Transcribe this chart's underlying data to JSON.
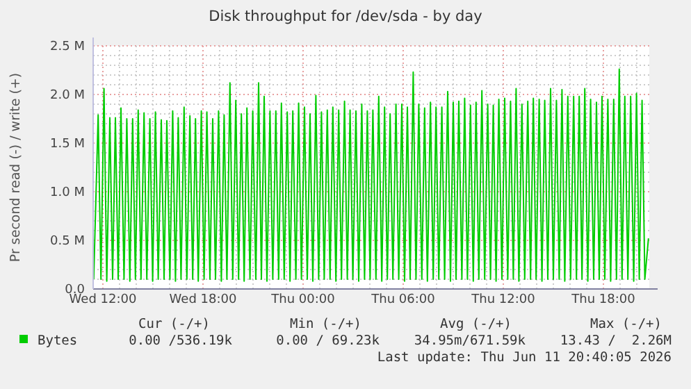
{
  "chart_data": {
    "type": "line",
    "title": "Disk throughput for /dev/sda - by day",
    "ylabel": "Pr second read (-) / write (+)",
    "xlim": [
      "2026-06-10T11:25",
      "2026-06-11T20:45"
    ],
    "xticks": [
      {
        "value": "2026-06-10T12:00",
        "label": "Wed 12:00"
      },
      {
        "value": "2026-06-10T18:00",
        "label": "Wed 18:00"
      },
      {
        "value": "2026-06-11T00:00",
        "label": "Thu 00:00"
      },
      {
        "value": "2026-06-11T06:00",
        "label": "Thu 06:00"
      },
      {
        "value": "2026-06-11T12:00",
        "label": "Thu 12:00"
      },
      {
        "value": "2026-06-11T18:00",
        "label": "Thu 18:00"
      }
    ],
    "ylim": [
      0,
      2.5
    ],
    "yticks": [
      {
        "value": 0,
        "label": "0.0"
      },
      {
        "value": 0.1,
        "label": null
      },
      {
        "value": 0.2,
        "label": null
      },
      {
        "value": 0.3,
        "label": null
      },
      {
        "value": 0.4,
        "label": null
      },
      {
        "value": 0.5,
        "label": "0.5 M"
      },
      {
        "value": 0.6,
        "label": null
      },
      {
        "value": 0.7,
        "label": null
      },
      {
        "value": 0.8,
        "label": null
      },
      {
        "value": 0.9,
        "label": null
      },
      {
        "value": 1.0,
        "label": "1.0 M"
      },
      {
        "value": 1.1,
        "label": null
      },
      {
        "value": 1.2,
        "label": null
      },
      {
        "value": 1.3,
        "label": null
      },
      {
        "value": 1.4,
        "label": null
      },
      {
        "value": 1.5,
        "label": "1.5 M"
      },
      {
        "value": 1.6,
        "label": null
      },
      {
        "value": 1.7,
        "label": null
      },
      {
        "value": 1.8,
        "label": null
      },
      {
        "value": 1.9,
        "label": null
      },
      {
        "value": 2.0,
        "label": "2.0 M"
      },
      {
        "value": 2.1,
        "label": null
      },
      {
        "value": 2.2,
        "label": null
      },
      {
        "value": 2.3,
        "label": null
      },
      {
        "value": 2.4,
        "label": null
      },
      {
        "value": 2.5,
        "label": "2.5 M"
      }
    ],
    "grid": true,
    "legend": "bottom left",
    "annotations": [
      "Cur (-/+)",
      "Min (-/+)",
      "Avg (-/+)",
      "Max (-/+)",
      "0.00 /536.19k",
      "0.00 / 69.23k",
      "34.95m/671.59k",
      "13.43 /  2.26M",
      "Last update: Thu Jun 11 20:40:05 2026"
    ],
    "series": [
      {
        "name": "Bytes",
        "color": "#00cc00",
        "x": [
          "2026-06-10T11:27",
          "2026-06-10T11:43",
          "2026-06-10T11:53",
          "2026-06-10T12:04",
          "2026-06-10T12:14",
          "2026-06-10T12:25",
          "2026-06-10T12:35",
          "2026-06-10T12:45",
          "2026-06-10T12:55",
          "2026-06-10T13:05",
          "2026-06-10T13:16",
          "2026-06-10T13:26",
          "2026-06-10T13:37",
          "2026-06-10T13:47",
          "2026-06-10T13:57",
          "2026-06-10T14:07",
          "2026-06-10T14:17",
          "2026-06-10T14:28",
          "2026-06-10T14:38",
          "2026-06-10T14:49",
          "2026-06-10T14:59",
          "2026-06-10T15:09",
          "2026-06-10T15:19",
          "2026-06-10T15:30",
          "2026-06-10T15:40",
          "2026-06-10T15:50",
          "2026-06-10T16:01",
          "2026-06-10T16:11",
          "2026-06-10T16:21",
          "2026-06-10T16:31",
          "2026-06-10T16:41",
          "2026-06-10T16:52",
          "2026-06-10T17:02",
          "2026-06-10T17:13",
          "2026-06-10T17:23",
          "2026-06-10T17:33",
          "2026-06-10T17:43",
          "2026-06-10T17:54",
          "2026-06-10T18:04",
          "2026-06-10T18:14",
          "2026-06-10T18:25",
          "2026-06-10T18:35",
          "2026-06-10T18:45",
          "2026-06-10T18:56",
          "2026-06-10T19:06",
          "2026-06-10T19:16",
          "2026-06-10T19:26",
          "2026-06-10T19:37",
          "2026-06-10T19:47",
          "2026-06-10T19:58",
          "2026-06-10T20:08",
          "2026-06-10T20:18",
          "2026-06-10T20:28",
          "2026-06-10T20:38",
          "2026-06-10T20:49",
          "2026-06-10T20:59",
          "2026-06-10T21:10",
          "2026-06-10T21:20",
          "2026-06-10T21:30",
          "2026-06-10T21:40",
          "2026-06-10T21:50",
          "2026-06-10T22:01",
          "2026-06-10T22:11",
          "2026-06-10T22:22",
          "2026-06-10T22:32",
          "2026-06-10T22:42",
          "2026-06-10T22:52",
          "2026-06-10T23:03",
          "2026-06-10T23:13",
          "2026-06-10T23:23",
          "2026-06-10T23:34",
          "2026-06-10T23:44",
          "2026-06-10T23:54",
          "2026-06-11T00:05",
          "2026-06-11T00:15",
          "2026-06-11T00:25",
          "2026-06-11T00:35",
          "2026-06-11T00:46",
          "2026-06-11T00:56",
          "2026-06-11T01:06",
          "2026-06-11T01:16",
          "2026-06-11T01:27",
          "2026-06-11T01:37",
          "2026-06-11T01:47",
          "2026-06-11T01:58",
          "2026-06-11T02:08",
          "2026-06-11T02:18",
          "2026-06-11T02:29",
          "2026-06-11T02:39",
          "2026-06-11T02:49",
          "2026-06-11T02:59",
          "2026-06-11T03:10",
          "2026-06-11T03:20",
          "2026-06-11T03:31",
          "2026-06-11T03:41",
          "2026-06-11T03:51",
          "2026-06-11T04:01",
          "2026-06-11T04:11",
          "2026-06-11T04:22",
          "2026-06-11T04:32",
          "2026-06-11T04:43",
          "2026-06-11T04:53",
          "2026-06-11T05:03",
          "2026-06-11T05:13",
          "2026-06-11T05:23",
          "2026-06-11T05:34",
          "2026-06-11T05:44",
          "2026-06-11T05:55",
          "2026-06-11T06:05",
          "2026-06-11T06:15",
          "2026-06-11T06:25",
          "2026-06-11T06:36",
          "2026-06-11T06:46",
          "2026-06-11T06:56",
          "2026-06-11T07:07",
          "2026-06-11T07:17",
          "2026-06-11T07:27",
          "2026-06-11T07:38",
          "2026-06-11T07:48",
          "2026-06-11T07:58",
          "2026-06-11T08:08",
          "2026-06-11T08:19",
          "2026-06-11T08:29",
          "2026-06-11T08:40",
          "2026-06-11T08:50",
          "2026-06-11T09:00",
          "2026-06-11T09:10",
          "2026-06-11T09:20",
          "2026-06-11T09:31",
          "2026-06-11T09:41",
          "2026-06-11T09:51",
          "2026-06-11T10:02",
          "2026-06-11T10:12",
          "2026-06-11T10:22",
          "2026-06-11T10:32",
          "2026-06-11T10:43",
          "2026-06-11T10:53",
          "2026-06-11T11:04",
          "2026-06-11T11:14",
          "2026-06-11T11:24",
          "2026-06-11T11:34",
          "2026-06-11T11:44",
          "2026-06-11T11:55",
          "2026-06-11T12:05",
          "2026-06-11T12:16",
          "2026-06-11T12:26",
          "2026-06-11T12:36",
          "2026-06-11T12:46",
          "2026-06-11T12:56",
          "2026-06-11T13:07",
          "2026-06-11T13:17",
          "2026-06-11T13:28",
          "2026-06-11T13:38",
          "2026-06-11T13:48",
          "2026-06-11T13:58",
          "2026-06-11T14:09",
          "2026-06-11T14:19",
          "2026-06-11T14:29",
          "2026-06-11T14:40",
          "2026-06-11T14:50",
          "2026-06-11T15:00",
          "2026-06-11T15:11",
          "2026-06-11T15:21",
          "2026-06-11T15:31",
          "2026-06-11T15:41",
          "2026-06-11T15:52",
          "2026-06-11T16:02",
          "2026-06-11T16:13",
          "2026-06-11T16:23",
          "2026-06-11T16:33",
          "2026-06-11T16:43",
          "2026-06-11T16:53",
          "2026-06-11T17:04",
          "2026-06-11T17:14",
          "2026-06-11T17:25",
          "2026-06-11T17:35",
          "2026-06-11T17:45",
          "2026-06-11T17:55",
          "2026-06-11T18:05",
          "2026-06-11T18:16",
          "2026-06-11T18:26",
          "2026-06-11T18:37",
          "2026-06-11T18:47",
          "2026-06-11T18:57",
          "2026-06-11T19:07",
          "2026-06-11T19:17",
          "2026-06-11T19:28",
          "2026-06-11T19:38",
          "2026-06-11T19:49",
          "2026-06-11T19:59",
          "2026-06-11T20:09",
          "2026-06-11T20:19",
          "2026-06-11T20:29",
          "2026-06-11T20:42"
        ],
        "values": [
          0.1,
          1.79,
          0.1,
          2.06,
          0.08,
          1.76,
          0.1,
          1.76,
          0.1,
          1.86,
          0.1,
          1.75,
          0.08,
          1.75,
          0.1,
          1.84,
          0.1,
          1.81,
          0.1,
          1.75,
          0.08,
          1.82,
          0.1,
          1.74,
          0.1,
          1.73,
          0.1,
          1.83,
          0.08,
          1.76,
          0.1,
          1.87,
          0.1,
          1.78,
          0.1,
          1.75,
          0.08,
          1.83,
          0.1,
          1.82,
          0.1,
          1.75,
          0.1,
          1.83,
          0.08,
          1.79,
          0.1,
          2.12,
          0.1,
          1.94,
          0.1,
          1.8,
          0.08,
          1.86,
          0.1,
          1.83,
          0.1,
          2.12,
          0.1,
          1.98,
          0.08,
          1.83,
          0.1,
          1.83,
          0.1,
          1.91,
          0.1,
          1.82,
          0.08,
          1.83,
          0.1,
          1.91,
          0.1,
          1.87,
          0.1,
          1.8,
          0.08,
          1.99,
          0.1,
          1.82,
          0.1,
          1.84,
          0.1,
          1.87,
          0.08,
          1.84,
          0.1,
          1.93,
          0.1,
          1.84,
          0.1,
          1.83,
          0.08,
          1.9,
          0.1,
          1.83,
          0.1,
          1.84,
          0.1,
          1.98,
          0.08,
          1.87,
          0.1,
          1.8,
          0.1,
          1.9,
          0.1,
          1.9,
          0.08,
          1.87,
          0.1,
          2.23,
          0.1,
          1.9,
          0.1,
          1.86,
          0.08,
          1.92,
          0.1,
          1.87,
          0.1,
          1.87,
          0.1,
          2.03,
          0.08,
          1.92,
          0.1,
          1.93,
          0.1,
          1.96,
          0.1,
          1.89,
          0.08,
          1.92,
          0.1,
          2.04,
          0.1,
          1.9,
          0.1,
          1.89,
          0.08,
          1.95,
          0.1,
          1.96,
          0.1,
          1.93,
          0.1,
          2.06,
          0.08,
          1.9,
          0.1,
          1.93,
          0.1,
          1.96,
          0.1,
          1.95,
          0.08,
          1.94,
          0.1,
          2.06,
          0.1,
          1.94,
          0.1,
          2.05,
          0.08,
          1.98,
          0.1,
          1.98,
          0.1,
          1.98,
          0.1,
          2.06,
          0.08,
          1.95,
          0.1,
          1.92,
          0.1,
          1.98,
          0.1,
          1.95,
          0.08,
          1.95,
          0.1,
          2.26,
          0.1,
          1.98,
          0.1,
          1.98,
          0.08,
          2.01,
          0.1,
          1.94,
          0.1,
          0.52
        ]
      }
    ]
  }
}
